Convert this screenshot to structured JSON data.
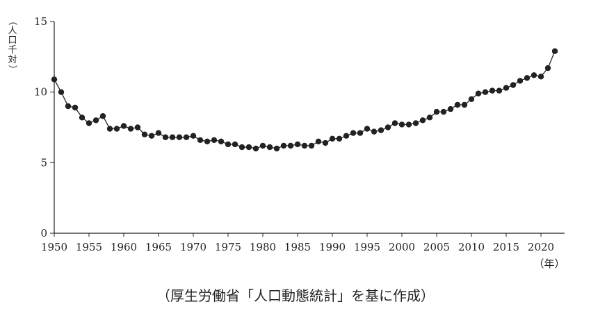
{
  "chart_data": {
    "type": "line",
    "title": "",
    "ylabel": "（人口千対）",
    "xunit": "（年）",
    "source": "（厚生労働省「人口動態統計」を基に作成）",
    "xlim": [
      1950,
      2023
    ],
    "ylim": [
      0,
      15
    ],
    "xticks": [
      "1950",
      "1955",
      "1960",
      "1965",
      "1970",
      "1975",
      "1980",
      "1985",
      "1990",
      "1995",
      "2000",
      "2005",
      "2010",
      "2015",
      "2020"
    ],
    "yticks": [
      "0",
      "5",
      "10",
      "15"
    ],
    "grid": false,
    "line_color": "#222222",
    "series": [
      {
        "x": [
          1950,
          1951,
          1952,
          1953,
          1954,
          1955,
          1956,
          1957,
          1958,
          1959,
          1960,
          1961,
          1962,
          1963,
          1964,
          1965,
          1966,
          1967,
          1968,
          1969,
          1970,
          1971,
          1972,
          1973,
          1974,
          1975,
          1976,
          1977,
          1978,
          1979,
          1980,
          1981,
          1982,
          1983,
          1984,
          1985,
          1986,
          1987,
          1988,
          1989,
          1990,
          1991,
          1992,
          1993,
          1994,
          1995,
          1996,
          1997,
          1998,
          1999,
          2000,
          2001,
          2002,
          2003,
          2004,
          2005,
          2006,
          2007,
          2008,
          2009,
          2010,
          2011,
          2012,
          2013,
          2014,
          2015,
          2016,
          2017,
          2018,
          2019,
          2020,
          2021,
          2022
        ],
        "values": [
          10.9,
          10.0,
          9.0,
          8.9,
          8.2,
          7.8,
          8.0,
          8.3,
          7.4,
          7.4,
          7.6,
          7.4,
          7.5,
          7.0,
          6.9,
          7.1,
          6.8,
          6.8,
          6.8,
          6.8,
          6.9,
          6.6,
          6.5,
          6.6,
          6.5,
          6.3,
          6.3,
          6.1,
          6.1,
          6.0,
          6.2,
          6.1,
          6.0,
          6.2,
          6.2,
          6.3,
          6.2,
          6.2,
          6.5,
          6.4,
          6.7,
          6.7,
          6.9,
          7.1,
          7.1,
          7.4,
          7.2,
          7.3,
          7.5,
          7.8,
          7.7,
          7.7,
          7.8,
          8.0,
          8.2,
          8.6,
          8.6,
          8.8,
          9.1,
          9.1,
          9.5,
          9.9,
          10.0,
          10.1,
          10.1,
          10.3,
          10.5,
          10.8,
          11.0,
          11.2,
          11.1,
          11.7,
          12.9
        ]
      }
    ]
  }
}
